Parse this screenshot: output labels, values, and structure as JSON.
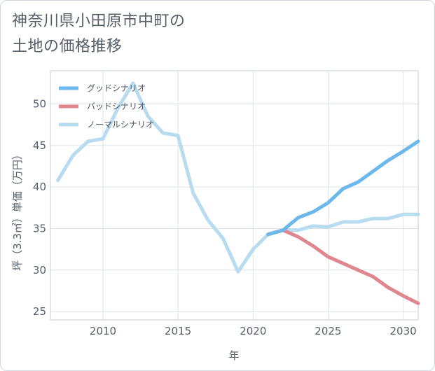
{
  "chart_data": {
    "type": "line",
    "title": "神奈川県小田原市中町の\n土地の価格推移",
    "title_lines": [
      "神奈川県小田原市中町の",
      "土地の価格推移"
    ],
    "xlabel": "年",
    "ylabel": "坪（3.3㎡）単価（万円）",
    "xlim": [
      2006.5,
      2031
    ],
    "ylim": [
      24,
      54
    ],
    "xticks": [
      2010,
      2015,
      2020,
      2025,
      2030
    ],
    "yticks": [
      25,
      30,
      35,
      40,
      45,
      50
    ],
    "grid": true,
    "legend_position": "top-left",
    "series": [
      {
        "name": "グッドシナリオ",
        "color": "#6ab8ec",
        "x": [
          2021,
          2022,
          2023,
          2024,
          2025,
          2026,
          2027,
          2028,
          2029,
          2030,
          2031
        ],
        "values": [
          34.3,
          34.8,
          36.3,
          37.0,
          38.1,
          39.8,
          40.6,
          41.9,
          43.2,
          44.3,
          45.5
        ]
      },
      {
        "name": "バッドシナリオ",
        "color": "#e0868e",
        "x": [
          2021,
          2022,
          2023,
          2024,
          2025,
          2026,
          2027,
          2028,
          2029,
          2030,
          2031
        ],
        "values": [
          34.3,
          34.8,
          34.0,
          32.9,
          31.6,
          30.8,
          30.0,
          29.2,
          27.9,
          26.9,
          26.0
        ]
      },
      {
        "name": "ノーマルシナリオ",
        "color": "#b7dcef",
        "x": [
          2007,
          2008,
          2009,
          2010,
          2011,
          2012,
          2013,
          2014,
          2015,
          2016,
          2017,
          2018,
          2019,
          2020,
          2021,
          2022,
          2023,
          2024,
          2025,
          2026,
          2027,
          2028,
          2029,
          2030,
          2031
        ],
        "values": [
          40.8,
          43.8,
          45.5,
          45.8,
          49.5,
          52.5,
          48.5,
          46.5,
          46.2,
          39.3,
          36.0,
          33.8,
          29.8,
          32.5,
          34.3,
          34.8,
          34.8,
          35.3,
          35.2,
          35.8,
          35.8,
          36.2,
          36.2,
          36.7,
          36.7
        ]
      }
    ]
  }
}
